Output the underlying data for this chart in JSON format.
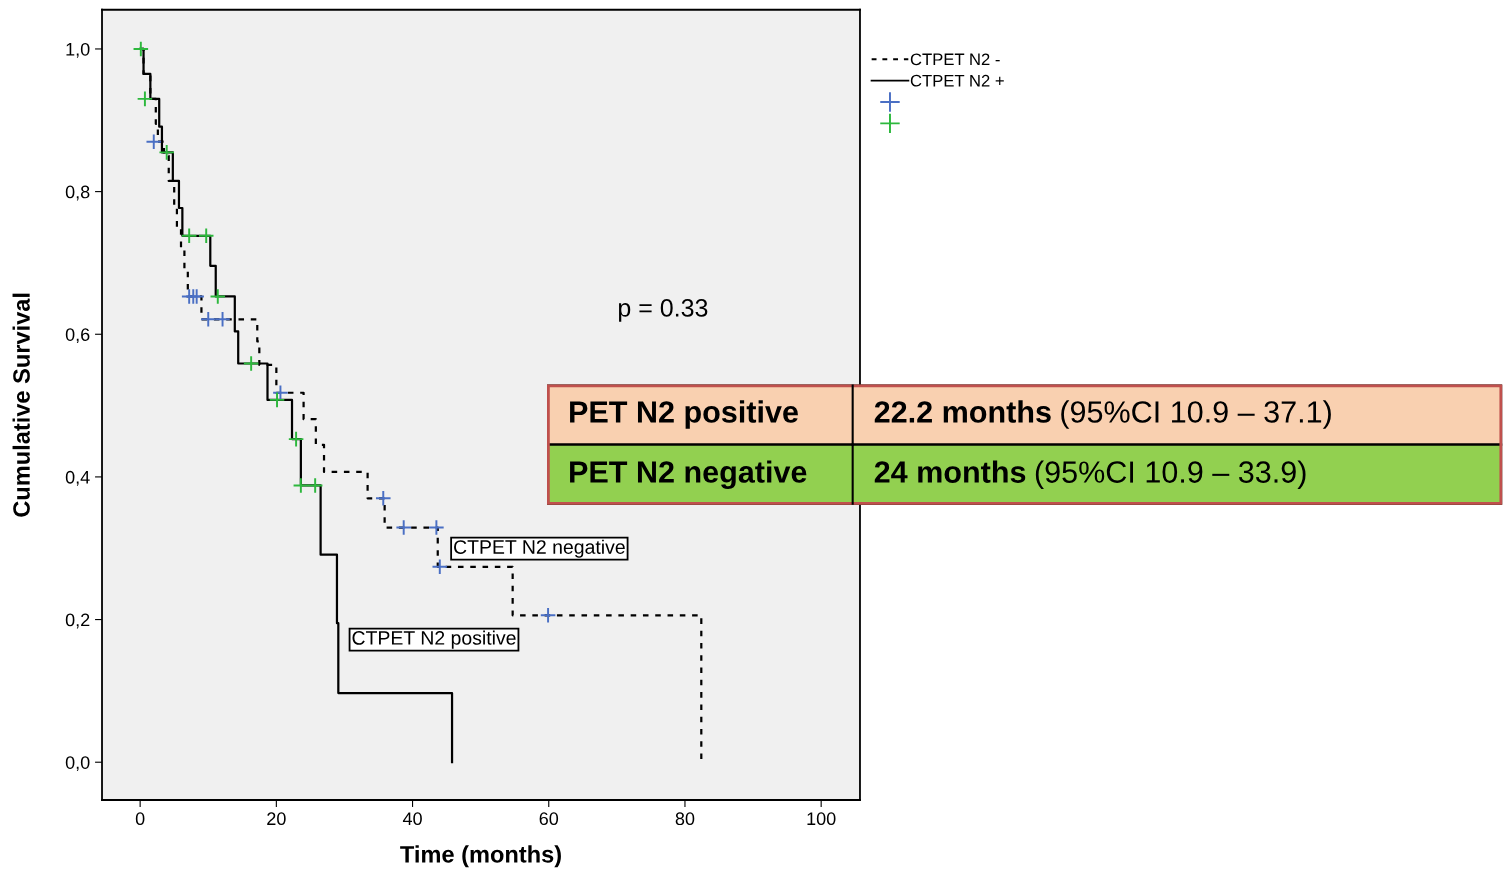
{
  "chart_data": [
    {
      "type": "step",
      "xlabel": "Time (months)",
      "ylabel": "Cumulative Survival",
      "xlim": [
        -5.6,
        105.7
      ],
      "ylim": [
        -0.053,
        1.055
      ],
      "xticks": [
        0,
        20,
        40,
        60,
        80,
        100
      ],
      "yticks": [
        {
          "value": 0,
          "label": "0,0"
        },
        {
          "value": 0.2,
          "label": "0,2"
        },
        {
          "value": 0.4,
          "label": "0,4"
        },
        {
          "value": 0.6,
          "label": "0,6"
        },
        {
          "value": 0.8,
          "label": "0,8"
        },
        {
          "value": 1.0,
          "label": "1,0"
        }
      ],
      "grid": false,
      "legend": "top right",
      "series": [
        {
          "name": "CTPET N2 -",
          "type": "step",
          "line_style": "dashed",
          "color": "#000000",
          "x": [
            0,
            0.5,
            1.5,
            2.3,
            2.6,
            3.5,
            4.2,
            5.0,
            5.4,
            6.0,
            6.5,
            7.0,
            9.0,
            17.2,
            17.5,
            20.0,
            24.0,
            25.8,
            27.0,
            33.4,
            35.9,
            43.7,
            54.7,
            82.4
          ],
          "values": [
            1.0,
            0.965,
            0.93,
            0.895,
            0.87,
            0.85,
            0.815,
            0.78,
            0.75,
            0.72,
            0.69,
            0.653,
            0.621,
            0.59,
            0.557,
            0.518,
            0.481,
            0.445,
            0.407,
            0.37,
            0.329,
            0.274,
            0.206,
            0.0
          ]
        },
        {
          "name": "CTPET N2 +",
          "type": "step",
          "line_style": "solid",
          "color": "#000000",
          "x": [
            0,
            0.5,
            1.5,
            2.8,
            3.2,
            4.8,
            5.7,
            6.2,
            10.3,
            11.1,
            13.9,
            14.4,
            18.7,
            22.3,
            23.6,
            26.5,
            28.9,
            29.1,
            45.8
          ],
          "values": [
            1.0,
            0.965,
            0.93,
            0.891,
            0.855,
            0.815,
            0.777,
            0.738,
            0.696,
            0.653,
            0.604,
            0.559,
            0.508,
            0.453,
            0.388,
            0.291,
            0.195,
            0.097,
            0.0
          ]
        },
        {
          "type": "scatter",
          "marker": "cross",
          "color": "#4a6fc4",
          "x": [
            2.0,
            7.2,
            7.8,
            8.3,
            10.0,
            12.1,
            20.6,
            35.7,
            38.7,
            43.5,
            44.0,
            59.9
          ],
          "values": [
            0.87,
            0.653,
            0.653,
            0.653,
            0.621,
            0.621,
            0.518,
            0.37,
            0.329,
            0.329,
            0.274,
            0.206
          ]
        },
        {
          "type": "scatter",
          "marker": "cross",
          "color": "#2db83d",
          "x": [
            0.1,
            0.7,
            3.9,
            7.2,
            9.7,
            11.4,
            16.3,
            20.1,
            22.9,
            23.6,
            25.7
          ],
          "values": [
            1.0,
            0.93,
            0.855,
            0.738,
            0.738,
            0.653,
            0.559,
            0.508,
            0.453,
            0.388,
            0.388
          ]
        }
      ],
      "annotations": [
        "p = 0.33",
        "CTPET N2 negative",
        "CTPET N2 positive"
      ]
    },
    {
      "type": "other",
      "colors": [
        "#f9d0b0",
        "#92d050"
      ],
      "annotations": [
        "PET N2 positive",
        "22.2 months",
        "(95%CI 10.9 – 37.1)",
        "PET N2 negative",
        "24 months",
        "(95%CI 10.9 – 33.9)"
      ]
    }
  ]
}
